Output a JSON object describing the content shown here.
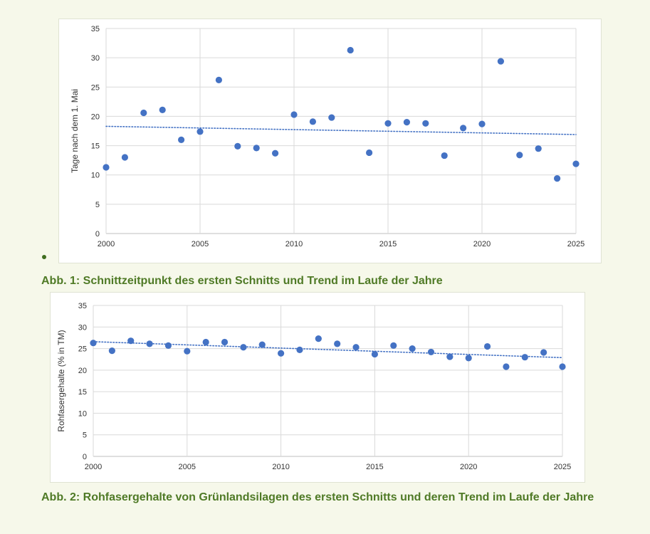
{
  "page": {
    "background": "#f6f8ea",
    "caption_color": "#4f7a26",
    "marker_color": "#4472c4"
  },
  "figures": [
    {
      "caption": "Abb. 1: Schnittzeitpunkt des ersten Schnitts und Trend im Laufe der Jahre"
    },
    {
      "caption": "Abb. 2: Rohfasergehalte von Grünlandsilagen des ersten Schnitts und deren Trend im Laufe der Jahre"
    }
  ],
  "chart_data": [
    {
      "type": "scatter",
      "title": "",
      "xlabel": "",
      "ylabel": "Tage nach dem 1. Mai",
      "xlim": [
        2000,
        2025
      ],
      "ylim": [
        0,
        35
      ],
      "xticks": [
        2000,
        2005,
        2010,
        2015,
        2020,
        2025
      ],
      "yticks": [
        0,
        5,
        10,
        15,
        20,
        25,
        30,
        35
      ],
      "grid": true,
      "trendline": {
        "type": "linear",
        "style": "dotted",
        "start": [
          2000,
          18.3
        ],
        "end": [
          2025,
          16.9
        ]
      },
      "series": [
        {
          "color": "#4472c4",
          "x": [
            2000,
            2001,
            2002,
            2003,
            2004,
            2005,
            2006,
            2007,
            2008,
            2009,
            2010,
            2011,
            2012,
            2013,
            2014,
            2015,
            2016,
            2017,
            2018,
            2019,
            2020,
            2021,
            2022,
            2023,
            2024,
            2025
          ],
          "y": [
            11.3,
            13.0,
            20.6,
            21.1,
            16.0,
            17.4,
            26.2,
            14.9,
            14.6,
            13.7,
            20.3,
            19.1,
            19.8,
            31.3,
            13.8,
            18.8,
            19.0,
            18.8,
            13.3,
            18.0,
            18.7,
            29.4,
            13.4,
            14.5,
            9.4,
            11.9
          ]
        }
      ]
    },
    {
      "type": "scatter",
      "title": "",
      "xlabel": "",
      "ylabel": "Rohfasergehalte (% in TM)",
      "xlim": [
        2000,
        2025
      ],
      "ylim": [
        0,
        35
      ],
      "xticks": [
        2000,
        2005,
        2010,
        2015,
        2020,
        2025
      ],
      "yticks": [
        0,
        5,
        10,
        15,
        20,
        25,
        30,
        35
      ],
      "grid": true,
      "trendline": {
        "type": "linear",
        "style": "dotted",
        "start": [
          2000,
          26.6
        ],
        "end": [
          2025,
          22.9
        ]
      },
      "series": [
        {
          "color": "#4472c4",
          "x": [
            2000,
            2001,
            2002,
            2003,
            2004,
            2005,
            2006,
            2007,
            2008,
            2009,
            2010,
            2011,
            2012,
            2013,
            2014,
            2015,
            2016,
            2017,
            2018,
            2019,
            2020,
            2021,
            2022,
            2023,
            2024,
            2025
          ],
          "y": [
            26.3,
            24.5,
            26.8,
            26.1,
            25.7,
            24.4,
            26.5,
            26.5,
            25.3,
            25.9,
            23.9,
            24.7,
            27.3,
            26.1,
            25.3,
            23.7,
            25.7,
            25.0,
            24.2,
            23.1,
            22.8,
            25.5,
            20.8,
            23.0,
            24.1,
            20.8
          ]
        }
      ]
    }
  ]
}
